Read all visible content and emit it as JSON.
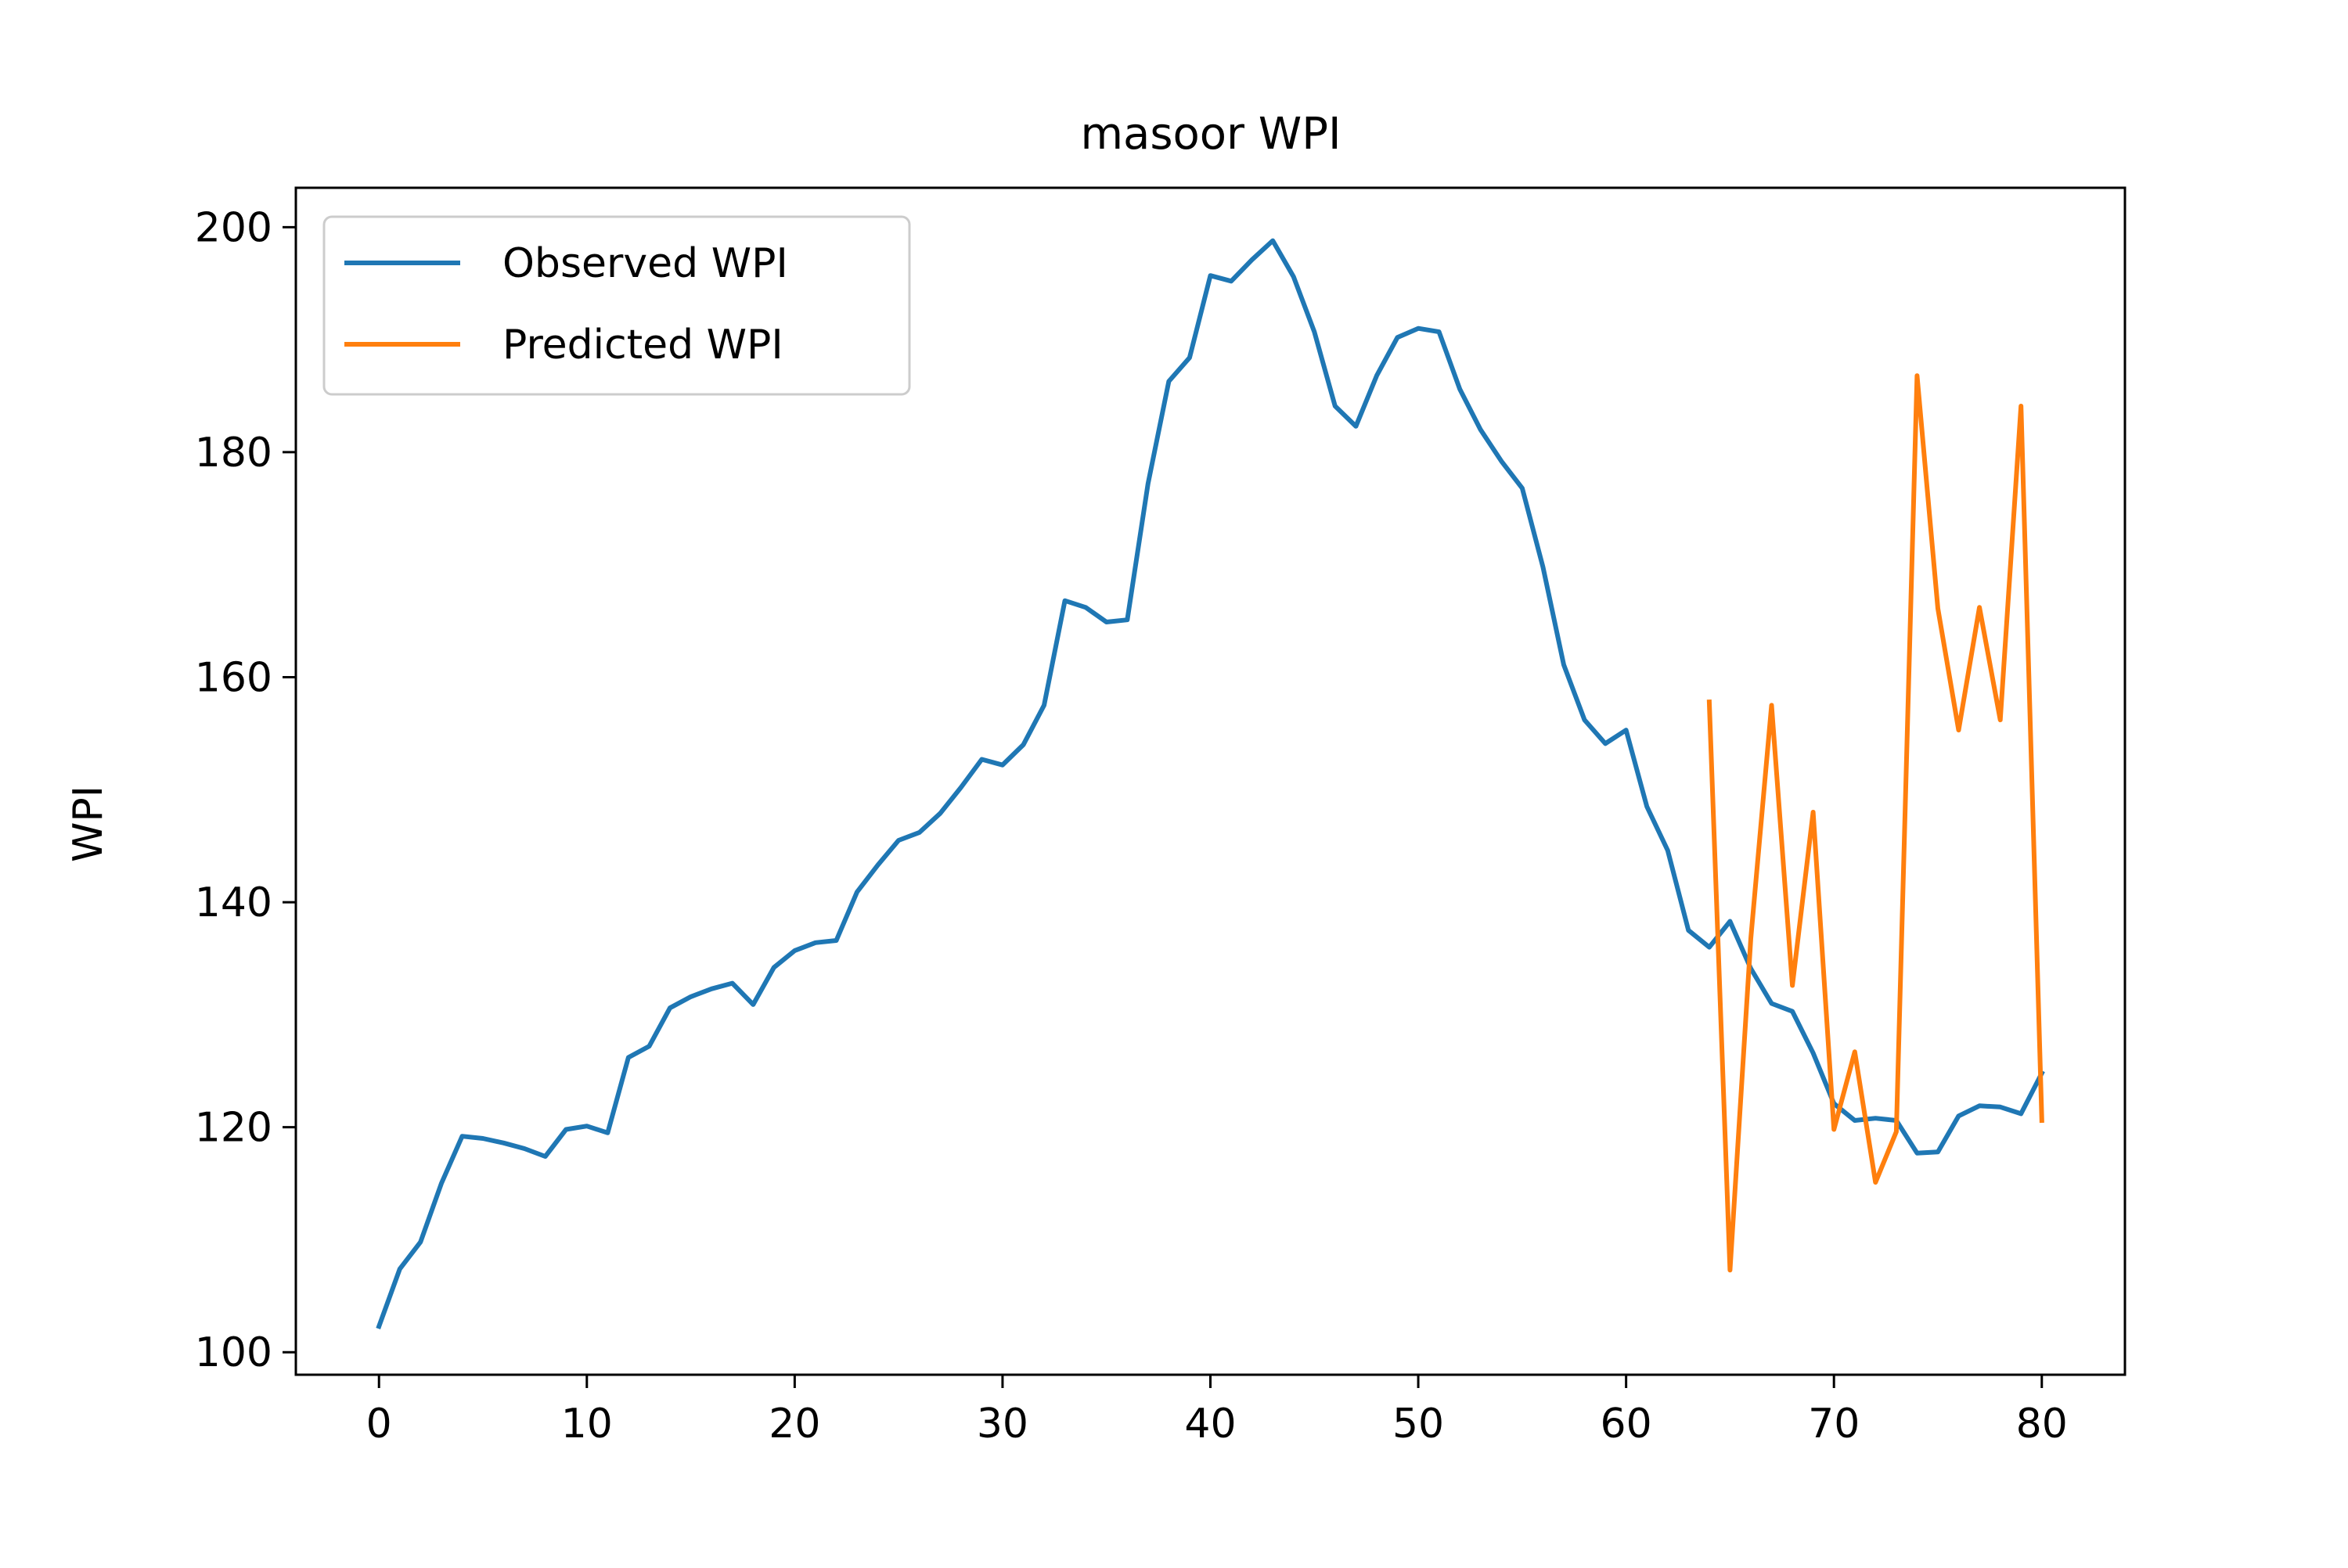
{
  "chart_data": {
    "type": "line",
    "title": "masoor WPI",
    "xlabel": "",
    "ylabel": "WPI",
    "xlim": [
      -4,
      84
    ],
    "ylim": [
      98,
      203.5
    ],
    "x_ticks": [
      0,
      10,
      20,
      30,
      40,
      50,
      60,
      70,
      80
    ],
    "y_ticks": [
      100,
      120,
      140,
      160,
      180,
      200
    ],
    "grid": false,
    "legend_position": "upper left",
    "series": [
      {
        "name": "Observed WPI",
        "color": "#1f77b4",
        "x": [
          0,
          1,
          2,
          3,
          4,
          5,
          6,
          7,
          8,
          9,
          10,
          11,
          12,
          13,
          14,
          15,
          16,
          17,
          18,
          19,
          20,
          21,
          22,
          23,
          24,
          25,
          26,
          27,
          28,
          29,
          30,
          31,
          32,
          33,
          34,
          35,
          36,
          37,
          38,
          39,
          40,
          41,
          42,
          43,
          44,
          45,
          46,
          47,
          48,
          49,
          50,
          51,
          52,
          53,
          54,
          55,
          56,
          57,
          58,
          59,
          60,
          61,
          62,
          63,
          64,
          65,
          66,
          67,
          68,
          69,
          70,
          71,
          72,
          73,
          74,
          75,
          76,
          77,
          78,
          79,
          80
        ],
        "values": [
          102.3,
          107.4,
          109.8,
          115.0,
          119.2,
          119.0,
          118.6,
          118.1,
          117.4,
          119.8,
          120.1,
          119.5,
          126.2,
          127.2,
          130.6,
          131.6,
          132.3,
          132.8,
          130.9,
          134.2,
          135.7,
          136.4,
          136.6,
          140.9,
          143.3,
          145.5,
          146.2,
          147.9,
          150.2,
          152.7,
          152.2,
          154.0,
          157.5,
          166.8,
          166.2,
          164.9,
          165.1,
          177.2,
          186.3,
          188.4,
          195.7,
          195.2,
          197.1,
          198.8,
          195.6,
          190.7,
          184.1,
          182.3,
          186.8,
          190.2,
          191.0,
          190.7,
          185.6,
          182.0,
          179.2,
          176.8,
          169.8,
          161.1,
          156.2,
          154.1,
          155.3,
          148.5,
          144.6,
          137.5,
          136.0,
          138.3,
          134.1,
          131.0,
          130.3,
          126.6,
          122.1,
          120.6,
          120.8,
          120.6,
          117.7,
          117.8,
          121.0,
          121.9,
          121.8,
          121.2,
          124.8
        ]
      },
      {
        "name": "Predicted WPI",
        "color": "#ff7f0e",
        "x": [
          64,
          65,
          66,
          67,
          68,
          69,
          70,
          71,
          72,
          73,
          74,
          75,
          76,
          77,
          78,
          79,
          80
        ],
        "values": [
          157.8,
          107.3,
          136.8,
          157.5,
          132.6,
          148.0,
          119.8,
          126.7,
          115.1,
          119.6,
          186.8,
          166.1,
          155.3,
          166.2,
          156.2,
          184.1,
          120.6
        ]
      }
    ]
  },
  "styles": {
    "axis_color": "#000000",
    "legend_border": "#cccccc",
    "background": "#ffffff"
  }
}
